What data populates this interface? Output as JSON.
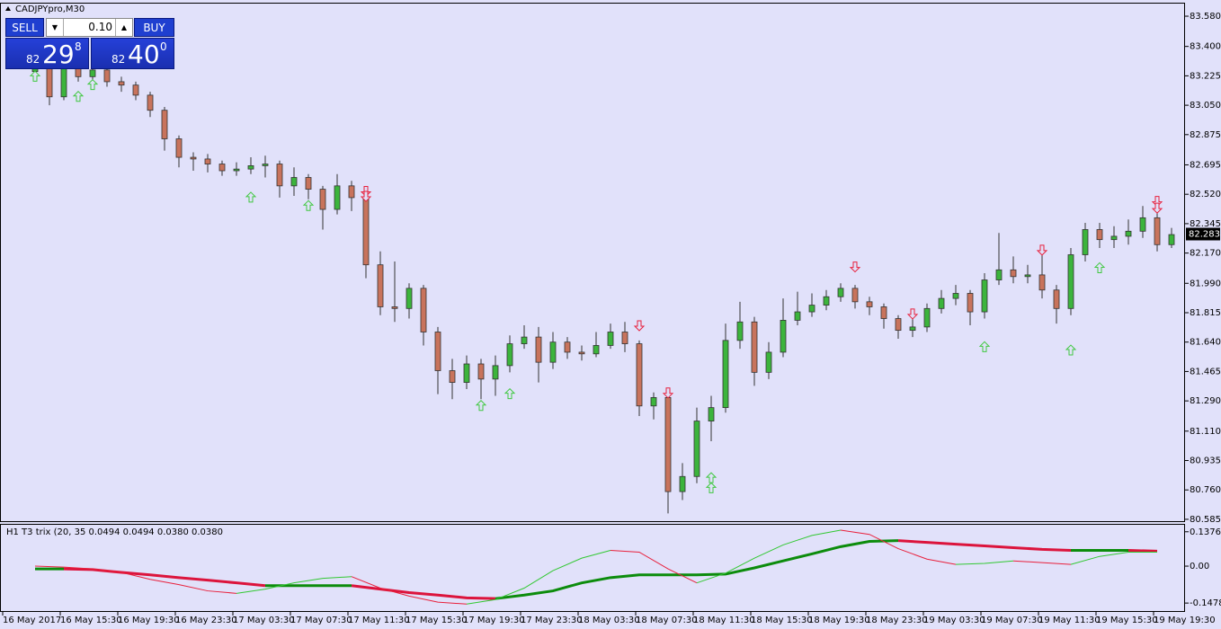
{
  "chart_data": [
    {
      "type": "candlestick",
      "title": "CADJPYpro,M30",
      "bull_color": "#3cb43c",
      "bear_color": "#c8735c",
      "open": [
        83.25,
        83.3,
        83.1,
        83.32,
        83.22,
        83.26,
        83.19,
        83.17,
        83.11,
        83.02,
        82.85,
        82.74,
        82.73,
        82.7,
        82.66,
        82.67,
        82.69,
        82.7,
        82.57,
        82.62,
        82.55,
        82.43,
        82.57,
        82.5,
        82.1,
        81.85,
        81.84,
        81.96,
        81.7,
        81.47,
        81.4,
        81.51,
        81.42,
        81.5,
        81.63,
        81.67,
        81.52,
        81.64,
        81.58,
        81.57,
        81.62,
        81.7,
        81.63,
        81.26,
        81.31,
        80.75,
        80.84,
        81.17,
        81.25,
        81.65,
        81.76,
        81.46,
        81.58,
        81.77,
        81.82,
        81.86,
        81.91,
        81.96,
        81.88,
        81.85,
        81.78,
        81.71,
        81.73,
        81.84,
        81.9,
        81.93,
        81.82,
        82.01,
        82.07,
        82.03,
        82.04,
        81.95,
        81.84,
        82.16,
        82.31,
        82.25,
        82.27,
        82.3,
        82.38,
        82.22
      ],
      "high": [
        83.36,
        83.33,
        83.38,
        83.35,
        83.3,
        83.28,
        83.22,
        83.19,
        83.13,
        83.04,
        82.87,
        82.77,
        82.76,
        82.72,
        82.71,
        82.74,
        82.75,
        82.72,
        82.68,
        82.64,
        82.57,
        82.64,
        82.6,
        82.52,
        82.18,
        82.12,
        81.99,
        81.98,
        81.73,
        81.54,
        81.56,
        81.54,
        81.56,
        81.68,
        81.74,
        81.73,
        81.7,
        81.67,
        81.62,
        81.7,
        81.75,
        81.76,
        81.65,
        81.34,
        81.34,
        80.92,
        81.25,
        81.32,
        81.75,
        81.88,
        81.79,
        81.64,
        81.9,
        81.94,
        81.93,
        81.95,
        81.99,
        81.98,
        81.91,
        81.87,
        81.8,
        81.78,
        81.87,
        81.95,
        81.98,
        81.95,
        82.05,
        82.29,
        82.15,
        82.1,
        82.16,
        81.98,
        82.2,
        82.35,
        82.35,
        82.33,
        82.37,
        82.45,
        82.42,
        82.32
      ],
      "low": [
        83.22,
        83.05,
        83.08,
        83.19,
        83.18,
        83.16,
        83.13,
        83.08,
        82.98,
        82.78,
        82.68,
        82.66,
        82.65,
        82.63,
        82.63,
        82.64,
        82.62,
        82.5,
        82.51,
        82.49,
        82.31,
        82.4,
        82.42,
        82.02,
        81.8,
        81.76,
        81.78,
        81.62,
        81.33,
        81.3,
        81.36,
        81.3,
        81.32,
        81.46,
        81.6,
        81.4,
        81.48,
        81.54,
        81.53,
        81.55,
        81.6,
        81.58,
        81.2,
        81.18,
        80.62,
        80.7,
        80.8,
        81.05,
        81.22,
        81.6,
        81.38,
        81.42,
        81.55,
        81.74,
        81.79,
        81.83,
        81.88,
        81.84,
        81.8,
        81.72,
        81.66,
        81.67,
        81.7,
        81.81,
        81.86,
        81.74,
        81.78,
        81.98,
        81.99,
        81.99,
        81.9,
        81.75,
        81.8,
        82.12,
        82.2,
        82.2,
        82.22,
        82.26,
        82.18,
        82.2
      ],
      "close": [
        83.3,
        83.1,
        83.32,
        83.22,
        83.26,
        83.19,
        83.17,
        83.11,
        83.02,
        82.85,
        82.74,
        82.73,
        82.7,
        82.66,
        82.67,
        82.69,
        82.7,
        82.57,
        82.62,
        82.55,
        82.43,
        82.57,
        82.5,
        82.1,
        81.85,
        81.84,
        81.96,
        81.7,
        81.47,
        81.4,
        81.51,
        81.42,
        81.5,
        81.63,
        81.67,
        81.52,
        81.64,
        81.58,
        81.57,
        81.62,
        81.7,
        81.63,
        81.26,
        81.31,
        80.75,
        80.84,
        81.17,
        81.25,
        81.65,
        81.76,
        81.46,
        81.58,
        81.77,
        81.82,
        81.86,
        81.91,
        81.96,
        81.88,
        81.85,
        81.78,
        81.71,
        81.73,
        81.84,
        81.9,
        81.93,
        81.82,
        82.01,
        82.07,
        82.03,
        82.04,
        81.95,
        81.84,
        82.16,
        82.31,
        82.25,
        82.27,
        82.3,
        82.38,
        82.22,
        82.28
      ],
      "up_signals": {
        "color": "#40c840",
        "candles": [
          0,
          3,
          4,
          15,
          19,
          31,
          33,
          47,
          47,
          66,
          72,
          74
        ],
        "prices": [
          83.22,
          83.1,
          83.17,
          82.5,
          82.45,
          81.26,
          81.33,
          80.83,
          80.77,
          81.61,
          81.59,
          82.08
        ]
      },
      "down_signals": {
        "color": "#e8203c",
        "candles": [
          23,
          23,
          42,
          44,
          57,
          61,
          70,
          78,
          78
        ],
        "prices": [
          82.54,
          82.51,
          81.74,
          81.34,
          82.09,
          81.81,
          82.19,
          82.48,
          82.44
        ]
      },
      "current_price": 82.283,
      "ylim": [
        80.574,
        83.655
      ],
      "yticks": [
        {
          "value": 83.58,
          "label": "83.580"
        },
        {
          "value": 83.4,
          "label": "83.400"
        },
        83.225,
        {
          "value": 83.05,
          "label": "83.050"
        },
        82.875,
        82.695,
        {
          "value": 82.52,
          "label": "82.520"
        },
        82.345,
        {
          "value": 82.17,
          "label": "82.170"
        },
        {
          "value": 81.99,
          "label": "81.990"
        },
        81.815,
        {
          "value": 81.64,
          "label": "81.640"
        },
        81.465,
        {
          "value": 81.29,
          "label": "81.290"
        },
        {
          "value": 81.11,
          "label": "81.110"
        },
        80.935,
        {
          "value": 80.76,
          "label": "80.760"
        },
        80.585
      ],
      "x_labels": [
        "16 May 2017",
        "16 May 15:30",
        "16 May 19:30",
        "16 May 23:30",
        "17 May 03:30",
        "17 May 07:30",
        "17 May 11:30",
        "17 May 15:30",
        "17 May 19:30",
        "17 May 23:30",
        "18 May 03:30",
        "18 May 07:30",
        "18 May 11:30",
        "18 May 15:30",
        "18 May 19:30",
        "18 May 23:30",
        "19 May 03:30",
        "19 May 07:30",
        "19 May 11:30",
        "19 May 15:30",
        "19 May 19:30"
      ]
    },
    {
      "type": "line",
      "title": "H1 T3 trix (20, 35 0.0494 0.0494 0.0380 0.0380",
      "ylim": [
        -0.1797,
        0.1656
      ],
      "yticks": [
        0.1376,
        {
          "value": 0,
          "label": "0.00"
        },
        -0.1478
      ],
      "series": [
        {
          "up_color": "#0c8c0c",
          "down_color": "#dc143c",
          "values": [
            -0.011,
            -0.011,
            -0.014,
            -0.025,
            -0.035,
            -0.046,
            -0.056,
            -0.067,
            -0.078,
            -0.078,
            -0.078,
            -0.078,
            -0.092,
            -0.106,
            -0.116,
            -0.127,
            -0.13,
            -0.116,
            -0.099,
            -0.067,
            -0.046,
            -0.035,
            -0.035,
            -0.035,
            -0.032,
            -0.007,
            0.021,
            0.049,
            0.078,
            0.099,
            0.102,
            0.095,
            0.088,
            0.081,
            0.074,
            0.067,
            0.063,
            0.063,
            0.063,
            0.06
          ]
        },
        {
          "up_color": "#32c832",
          "down_color": "#e8203c",
          "values": [
            0,
            -0.004,
            -0.011,
            -0.025,
            -0.053,
            -0.074,
            -0.099,
            -0.109,
            -0.092,
            -0.067,
            -0.049,
            -0.042,
            -0.088,
            -0.12,
            -0.144,
            -0.152,
            -0.134,
            -0.088,
            -0.018,
            0.032,
            0.063,
            0.056,
            -0.011,
            -0.067,
            -0.028,
            0.032,
            0.085,
            0.123,
            0.144,
            0.127,
            0.07,
            0.028,
            0.007,
            0.011,
            0.021,
            0.014,
            0.007,
            0.039,
            0.056,
            0.056
          ]
        }
      ]
    }
  ],
  "trade_panel": {
    "sell": "SELL",
    "buy": "BUY",
    "lot": "0.10",
    "bid": {
      "big": "82",
      "main": "29",
      "small": "8"
    },
    "ask": {
      "big": "82",
      "main": "40",
      "small": "0"
    }
  }
}
